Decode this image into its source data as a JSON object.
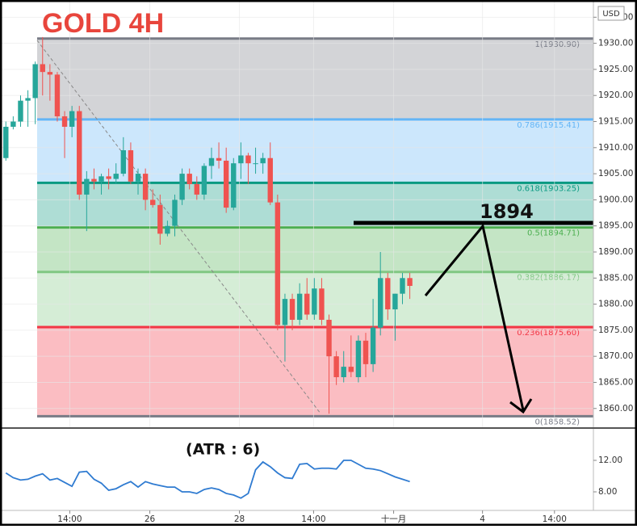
{
  "chart_data": [
    {
      "type": "candlestick",
      "title": "GOLD 4H",
      "currency": "USD",
      "xlim": [
        -0.8,
        80
      ],
      "ylim": [
        1856.25,
        1938.3
      ],
      "xticks": [
        {
          "value": 8.7,
          "label": "14:00"
        },
        {
          "value": 19.6,
          "label": "26"
        },
        {
          "value": 31.8,
          "label": "28"
        },
        {
          "value": 41.9,
          "label": "14:00"
        },
        {
          "value": 52.8,
          "label": "十一月"
        },
        {
          "value": 64.9,
          "label": "4"
        },
        {
          "value": 74.7,
          "label": "14:00"
        }
      ],
      "yticks": [
        {
          "value": 1860,
          "label": "1860.00"
        },
        {
          "value": 1865,
          "label": "1865.00"
        },
        {
          "value": 1870,
          "label": "1870.00"
        },
        {
          "value": 1875,
          "label": "1875.00"
        },
        {
          "value": 1880,
          "label": "1880.00"
        },
        {
          "value": 1885,
          "label": "1885.00"
        },
        {
          "value": 1890,
          "label": "1890.00"
        },
        {
          "value": 1895,
          "label": "1895.00"
        },
        {
          "value": 1900,
          "label": "1900.00"
        },
        {
          "value": 1905,
          "label": "1905.00"
        },
        {
          "value": 1910,
          "label": "1910.00"
        },
        {
          "value": 1915,
          "label": "1915.00"
        },
        {
          "value": 1920,
          "label": "1920.00"
        },
        {
          "value": 1925,
          "label": "1925.00"
        },
        {
          "value": 1930,
          "label": "1930.00"
        },
        {
          "value": 1935,
          "label": "1935.00"
        }
      ],
      "up_color": "#26a69a",
      "down_color": "#ef5350",
      "open": [
        1908,
        1914,
        1915,
        1919,
        1919.5,
        1926,
        1924.5,
        1924,
        1916,
        1914,
        1917,
        1901,
        1904,
        1903.5,
        1904.5,
        1904,
        1905,
        1909.5,
        1903.5,
        1905,
        1900,
        1899,
        1893.5,
        1895,
        1900,
        1905,
        1903,
        1901,
        1906.5,
        1908,
        1907.5,
        1898.5,
        1907,
        1908.5,
        1907,
        1907,
        1908,
        1899.5,
        1876,
        1881,
        1877,
        1882,
        1878,
        1883,
        1877,
        1870,
        1866,
        1868,
        1866,
        1873,
        1868.5,
        1875.5,
        1885,
        1879,
        1882,
        1885
      ],
      "high": [
        1915,
        1916,
        1920,
        1921,
        1926.5,
        1931.2,
        1926,
        1924.5,
        1917,
        1918,
        1918,
        1905.5,
        1906,
        1905,
        1906,
        1907,
        1912,
        1911,
        1906,
        1906,
        1902,
        1901,
        1896,
        1901,
        1906,
        1906,
        1904.5,
        1907,
        1910,
        1911,
        1910,
        1908,
        1911,
        1909,
        1910,
        1909,
        1911,
        1901,
        1882,
        1882,
        1884,
        1885,
        1885,
        1885,
        1878,
        1871,
        1871,
        1874,
        1874,
        1874.5,
        1881,
        1890,
        1886,
        1882,
        1886,
        1886
      ],
      "low": [
        1907.5,
        1913.5,
        1914,
        1914,
        1914.5,
        1920,
        1919,
        1915,
        1908,
        1912,
        1900,
        1894,
        1902,
        1901,
        1902,
        1903,
        1904.5,
        1903,
        1901,
        1898,
        1898.5,
        1891.4,
        1893,
        1893,
        1899,
        1902,
        1900,
        1900,
        1904,
        1906,
        1897.5,
        1898,
        1904,
        1903,
        1905,
        1905,
        1899,
        1875,
        1869,
        1875,
        1876,
        1877,
        1877,
        1876,
        1859,
        1864.5,
        1865,
        1866,
        1865,
        1866,
        1867,
        1874,
        1877,
        1873,
        1880,
        1881
      ],
      "close": [
        1914,
        1915,
        1919,
        1919.5,
        1926,
        1924.5,
        1924,
        1916,
        1914,
        1917,
        1901,
        1904,
        1903.5,
        1904.5,
        1904,
        1905,
        1909.5,
        1903.5,
        1905,
        1900,
        1899,
        1893.5,
        1895,
        1900,
        1905,
        1903,
        1901,
        1906.5,
        1908,
        1907.5,
        1898.5,
        1907,
        1908.5,
        1907,
        1907,
        1908,
        1899.5,
        1876,
        1881,
        1877,
        1882,
        1878,
        1883,
        1877,
        1870,
        1866,
        1868,
        1867,
        1873,
        1868.5,
        1875.5,
        1885,
        1879,
        1882,
        1885,
        1883.5
      ],
      "fib_levels": [
        {
          "label": "1(1930.90)",
          "value": 1930.9,
          "color": "#787b86"
        },
        {
          "label": "0.786(1915.41)",
          "value": 1915.41,
          "color": "#64b5f6"
        },
        {
          "label": "0.618(1903.25)",
          "value": 1903.25,
          "color": "#089981"
        },
        {
          "label": "0.5(1894.71)",
          "value": 1894.71,
          "color": "#4caf50"
        },
        {
          "label": "0.382(1886.17)",
          "value": 1886.17,
          "color": "#81c784"
        },
        {
          "label": "0.236(1875.60)",
          "value": 1875.6,
          "color": "#f23645"
        },
        {
          "label": "0(1858.52)",
          "value": 1858.52,
          "color": "#787b86"
        }
      ],
      "annotation": "1894"
    },
    {
      "type": "line",
      "title": "(ATR : 6)",
      "color": "#2f7bd1",
      "ylim": [
        5.64,
        15.9
      ],
      "yticks": [
        {
          "value": 8,
          "label": "8.00"
        },
        {
          "value": 12,
          "label": "12.00"
        }
      ],
      "values": [
        10.4,
        9.8,
        9.5,
        9.6,
        10.0,
        10.3,
        9.5,
        9.7,
        9.2,
        8.7,
        10.5,
        10.6,
        9.6,
        9.1,
        8.2,
        8.4,
        8.9,
        9.3,
        8.6,
        9.3,
        9.0,
        8.8,
        8.6,
        8.6,
        8.0,
        8.0,
        7.8,
        8.3,
        8.5,
        8.3,
        7.8,
        7.6,
        7.2,
        7.8,
        10.8,
        11.8,
        11.2,
        10.4,
        9.8,
        9.7,
        11.5,
        11.6,
        10.9,
        11.0,
        11.0,
        10.9,
        12.0,
        12.0,
        11.5,
        11.0,
        10.9,
        10.7,
        10.3,
        9.9,
        9.6,
        9.3
      ]
    }
  ]
}
